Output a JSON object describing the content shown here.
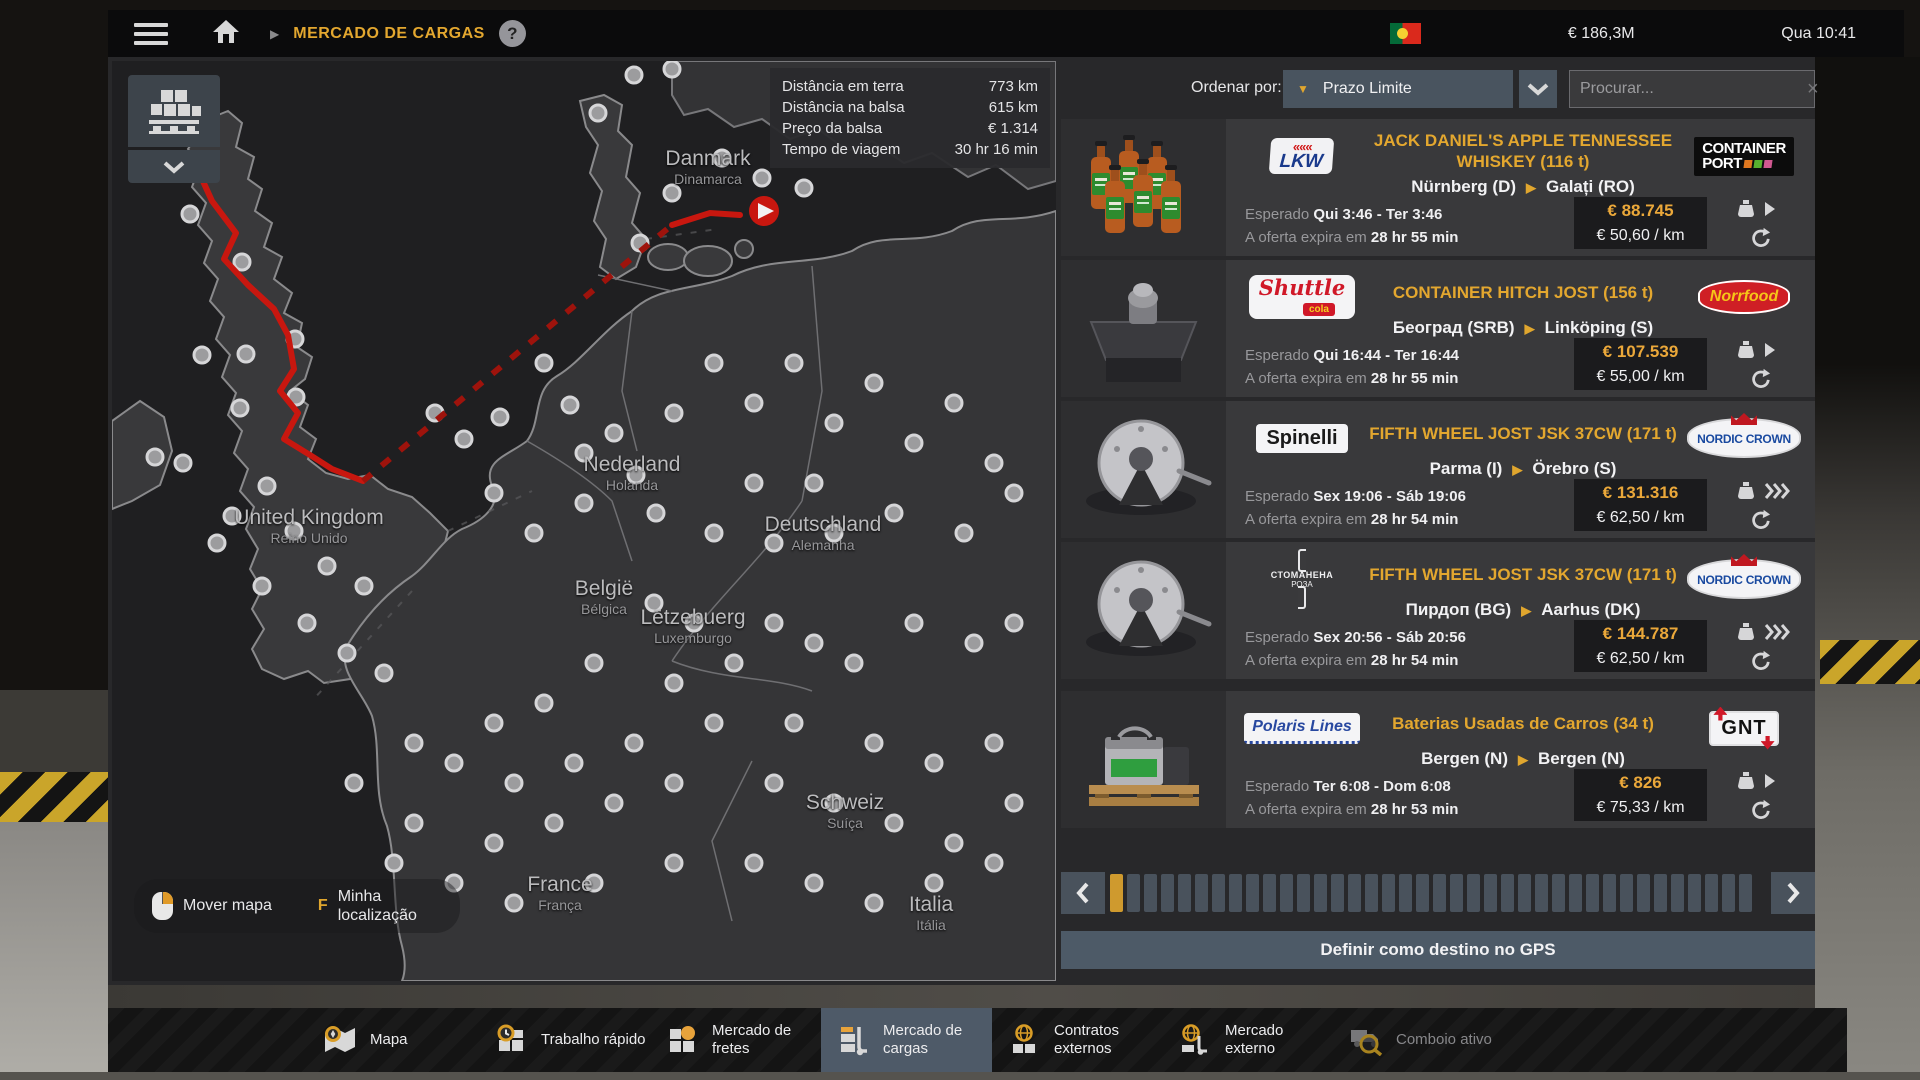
{
  "top_bar": {
    "breadcrumb": "MERCADO DE CARGAS",
    "help": "?",
    "money": "€ 186,3M",
    "time": "Qua 10:41"
  },
  "icons": {
    "breadcrumb_arrow": "▶",
    "dropdown_arrow": "▼",
    "route_arrow": "▶",
    "clear": "×"
  },
  "map": {
    "info_rows": [
      {
        "label": "Distância em terra",
        "value": "773 km"
      },
      {
        "label": "Distância na balsa",
        "value": "615 km"
      },
      {
        "label": "Preço da balsa",
        "value": "€ 1.314"
      },
      {
        "label": "Tempo de viagem",
        "value": "30 hr 16 min"
      }
    ],
    "countries": [
      {
        "name": "Danmark",
        "sub": "Dinamarca"
      },
      {
        "name": "United Kingdom",
        "sub": "Reino Unido"
      },
      {
        "name": "Nederland",
        "sub": "Holanda"
      },
      {
        "name": "België",
        "sub": "Bélgica"
      },
      {
        "name": "Lëtzebuerg",
        "sub": "Luxemburgo"
      },
      {
        "name": "Deutschland",
        "sub": "Alemanha"
      },
      {
        "name": "Schweiz",
        "sub": "Suíça"
      },
      {
        "name": "France",
        "sub": "França"
      },
      {
        "name": "Italia",
        "sub": "Itália"
      }
    ],
    "controls": {
      "move_map": "Mover mapa",
      "location_key": "F",
      "location": "Minha localização"
    }
  },
  "list": {
    "sort_label": "Ordenar por:",
    "sort_value": "Prazo Limite",
    "search_placeholder": "Procurar...",
    "labels": {
      "expected": "Esperado",
      "expires": "A oferta expira em"
    },
    "rows": [
      {
        "thumb": "bottles",
        "shipper": {
          "type": "lkw",
          "text": "LKW"
        },
        "title": "JACK DANIEL'S APPLE TENNESSEE WHISKEY (116 t)",
        "from": "Nürnberg (D)",
        "to": "Galați (RO)",
        "receiver": {
          "type": "containerport",
          "text": "CONTAINER PORT"
        },
        "expected": "Qui 3:46 - Ter 3:46",
        "expires": "28 hr 55 min",
        "price": "€ 88.745",
        "per_km": "€ 50,60 / km",
        "urgency": 1
      },
      {
        "thumb": "hitch",
        "shipper": {
          "type": "shuttle",
          "text": "Shuttle cola"
        },
        "title": "CONTAINER HITCH JOST (156 t)",
        "from": "Београд (SRB)",
        "to": "Linköping (S)",
        "receiver": {
          "type": "norrfood",
          "text": "Norrfood"
        },
        "expected": "Qui 16:44 - Ter 16:44",
        "expires": "28 hr 55 min",
        "price": "€ 107.539",
        "per_km": "€ 55,00 / km",
        "urgency": 1
      },
      {
        "thumb": "fifthwheel",
        "shipper": {
          "type": "spinelli",
          "text": "Spinelli"
        },
        "title": "FIFTH WHEEL JOST JSK 37CW (171 t)",
        "from": "Parma (I)",
        "to": "Örebro (S)",
        "receiver": {
          "type": "nordiccrown",
          "text": "NORDIC CROWN"
        },
        "expected": "Sex 19:06 - Sáb 19:06",
        "expires": "28 hr 54 min",
        "price": "€ 131.316",
        "per_km": "€ 62,50 / km",
        "urgency": 3
      },
      {
        "thumb": "fifthwheel",
        "shipper": {
          "type": "stomanena",
          "text": "СТОМАНЕНА РОЗА"
        },
        "title": "FIFTH WHEEL JOST JSK 37CW (171 t)",
        "from": "Пирдоп (BG)",
        "to": "Aarhus (DK)",
        "receiver": {
          "type": "nordiccrown",
          "text": "NORDIC CROWN"
        },
        "expected": "Sex 20:56 - Sáb 20:56",
        "expires": "28 hr 54 min",
        "price": "€ 144.787",
        "per_km": "€ 62,50 / km",
        "urgency": 3
      },
      {
        "thumb": "battery",
        "shipper": {
          "type": "polaris",
          "text": "Polaris Lines"
        },
        "title": "Baterias Usadas de Carros (34 t)",
        "from": "Bergen (N)",
        "to": "Bergen (N)",
        "receiver": {
          "type": "gnt",
          "text": "GNT"
        },
        "expected": "Ter 6:08 - Dom 6:08",
        "expires": "28 hr 53 min",
        "price": "€ 826",
        "per_km": "€ 75,33 / km",
        "urgency": 1
      }
    ],
    "pagination": {
      "pages": 38,
      "current": 1
    },
    "gps_button": "Definir como destino no GPS"
  },
  "nav": {
    "tabs": [
      {
        "label": "Mapa",
        "icon": "map-icon",
        "selected": false,
        "disabled": false
      },
      {
        "label": "Trabalho rápido",
        "icon": "quick-job-icon",
        "selected": false,
        "disabled": false
      },
      {
        "label": "Mercado de fretes",
        "icon": "freight-market-icon",
        "selected": false,
        "disabled": false
      },
      {
        "label": "Mercado de cargas",
        "icon": "cargo-market-icon",
        "selected": true,
        "disabled": false
      },
      {
        "label": "Contratos externos",
        "icon": "external-contracts-icon",
        "selected": false,
        "disabled": false
      },
      {
        "label": "Mercado externo",
        "icon": "external-market-icon",
        "selected": false,
        "disabled": false
      },
      {
        "label": "Comboio ativo",
        "icon": "active-convoy-icon",
        "selected": false,
        "disabled": true
      }
    ]
  },
  "colors": {
    "accent": "#e3a72f",
    "route": "#c8170f",
    "panel_blue": "#4e5a68"
  }
}
